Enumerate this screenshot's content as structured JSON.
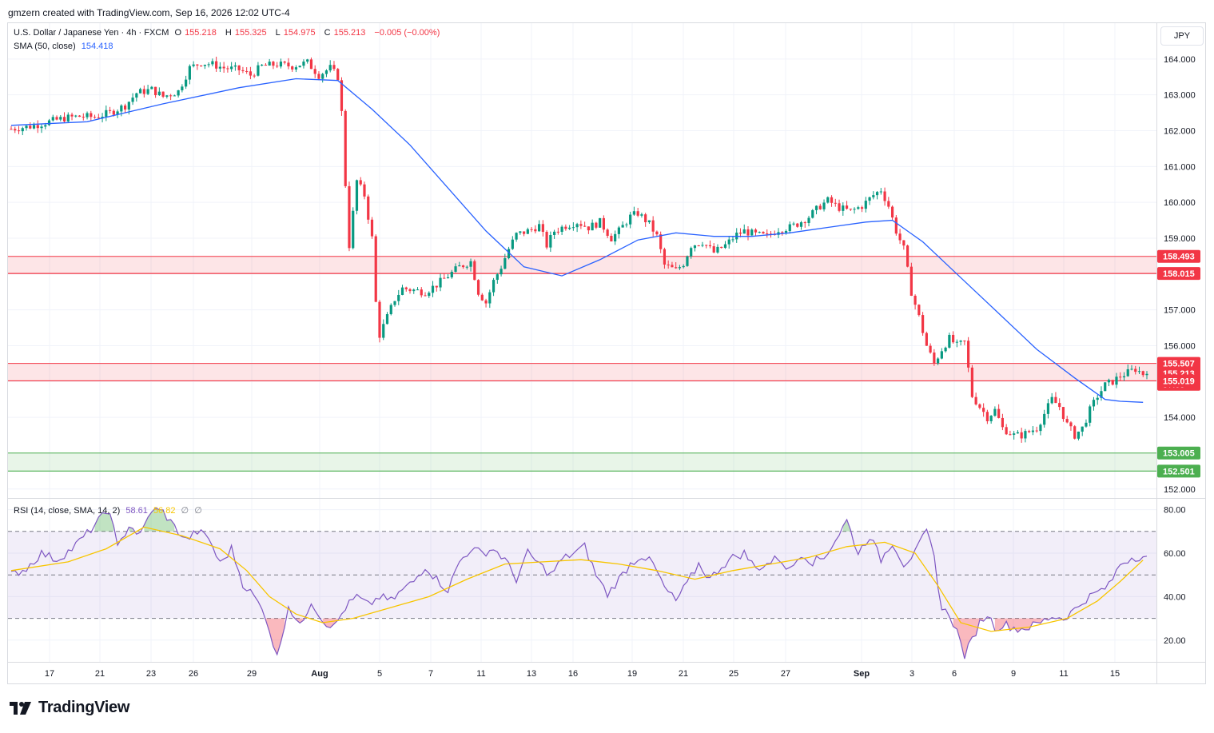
{
  "header": {
    "text": "gmzern created with TradingView.com, Sep 16, 2026 12:02 UTC-4"
  },
  "legend": {
    "symbol": "U.S. Dollar / Japanese Yen · 4h · FXCM",
    "o_label": "O",
    "o": "155.218",
    "h_label": "H",
    "h": "155.325",
    "l_label": "L",
    "l": "154.975",
    "c_label": "C",
    "c": "155.213",
    "change": "−0.005 (−0.00%)",
    "sma_label": "SMA (50, close)",
    "sma_value": "154.418"
  },
  "rsi_legend": {
    "label": "RSI (14, close, SMA, 14, 2)",
    "rsi": "58.61",
    "ma": "56.82",
    "extra1": "∅",
    "extra2": "∅"
  },
  "currency": "JPY",
  "footer": {
    "brand": "TradingView"
  },
  "colors": {
    "up": "#089981",
    "down": "#f23645",
    "sma": "#2962ff",
    "rsi": "#7e57c2",
    "rsi_ma": "#f7c500",
    "resistance_zone": "#f23645",
    "support_zone": "#4caf50"
  },
  "chart_data": {
    "type": "candlestick",
    "price_axis": {
      "range": [
        151.75,
        165.0
      ],
      "ticks": [
        "164.000",
        "163.000",
        "162.000",
        "161.000",
        "160.000",
        "159.000",
        "158.000",
        "157.000",
        "156.000",
        "155.000",
        "154.000",
        "153.000",
        "152.000"
      ]
    },
    "rsi_axis": {
      "range": [
        10,
        85
      ],
      "ticks": [
        "80.00",
        "60.00",
        "40.00",
        "20.00"
      ],
      "upper_band": 70,
      "middle": 50,
      "lower_band": 30
    },
    "x_ticks": [
      "17",
      "21",
      "23",
      "26",
      "29",
      "Aug",
      "5",
      "7",
      "11",
      "13",
      "16",
      "19",
      "21",
      "25",
      "27",
      "Sep",
      "3",
      "6",
      "9",
      "11",
      "15"
    ],
    "zones": [
      {
        "type": "resistance",
        "top": 158.493,
        "bottom": 158.015
      },
      {
        "type": "resistance",
        "top": 155.507,
        "bottom": 155.019
      },
      {
        "type": "support",
        "top": 153.005,
        "bottom": 152.501
      }
    ],
    "price_labels": [
      {
        "value": "158.493",
        "price": 158.493,
        "color": "#f23645"
      },
      {
        "value": "158.015",
        "price": 158.015,
        "color": "#f23645"
      },
      {
        "value": "155.507",
        "price": 155.507,
        "color": "#f23645"
      },
      {
        "value": "155.213",
        "price": 155.213,
        "color": "#f23645",
        "countdown": "57:05"
      },
      {
        "value": "155.019",
        "price": 155.019,
        "color": "#f23645"
      },
      {
        "value": "153.005",
        "price": 153.005,
        "color": "#4caf50"
      },
      {
        "value": "152.501",
        "price": 152.501,
        "color": "#4caf50"
      }
    ],
    "close_series": [
      [
        0,
        162.05
      ],
      [
        5,
        162.12
      ],
      [
        10,
        162.25
      ],
      [
        14,
        162.35
      ],
      [
        18,
        162.4
      ],
      [
        22,
        162.38
      ],
      [
        26,
        162.5
      ],
      [
        30,
        162.7
      ],
      [
        33,
        163.05
      ],
      [
        37,
        163.15
      ],
      [
        40,
        162.95
      ],
      [
        44,
        163.1
      ],
      [
        47,
        163.75
      ],
      [
        50,
        163.9
      ],
      [
        53,
        163.85
      ],
      [
        56,
        163.75
      ],
      [
        60,
        163.7
      ],
      [
        63,
        163.55
      ],
      [
        66,
        163.8
      ],
      [
        70,
        163.85
      ],
      [
        74,
        163.8
      ],
      [
        78,
        163.9
      ],
      [
        81,
        163.55
      ],
      [
        84,
        163.75
      ],
      [
        86,
        163.5
      ],
      [
        87,
        162.5
      ],
      [
        88,
        160.5
      ],
      [
        89,
        158.8
      ],
      [
        91,
        160.6
      ],
      [
        93,
        160.2
      ],
      [
        95,
        159.0
      ],
      [
        96,
        157.2
      ],
      [
        97,
        156.3
      ],
      [
        99,
        156.8
      ],
      [
        101,
        157.3
      ],
      [
        103,
        157.6
      ],
      [
        106,
        157.55
      ],
      [
        109,
        157.5
      ],
      [
        112,
        157.7
      ],
      [
        115,
        157.95
      ],
      [
        118,
        158.2
      ],
      [
        121,
        158.35
      ],
      [
        123,
        157.5
      ],
      [
        125,
        157.2
      ],
      [
        127,
        157.8
      ],
      [
        129,
        158.2
      ],
      [
        131,
        158.7
      ],
      [
        133,
        159.1
      ],
      [
        136,
        159.2
      ],
      [
        139,
        159.35
      ],
      [
        141,
        158.8
      ],
      [
        143,
        159.2
      ],
      [
        146,
        159.35
      ],
      [
        149,
        159.45
      ],
      [
        152,
        159.3
      ],
      [
        155,
        159.45
      ],
      [
        158,
        159.0
      ],
      [
        160,
        159.2
      ],
      [
        163,
        159.6
      ],
      [
        165,
        159.7
      ],
      [
        168,
        159.4
      ],
      [
        170,
        159.05
      ],
      [
        172,
        158.25
      ],
      [
        175,
        158.1
      ],
      [
        177,
        158.3
      ],
      [
        179,
        158.8
      ],
      [
        182,
        158.9
      ],
      [
        185,
        158.6
      ],
      [
        188,
        158.8
      ],
      [
        191,
        159.1
      ],
      [
        193,
        159.2
      ],
      [
        196,
        159.1
      ],
      [
        199,
        159.05
      ],
      [
        202,
        159.25
      ],
      [
        205,
        159.3
      ],
      [
        207,
        159.4
      ],
      [
        210,
        159.6
      ],
      [
        213,
        159.9
      ],
      [
        215,
        160.05
      ],
      [
        218,
        159.85
      ],
      [
        221,
        159.75
      ],
      [
        224,
        159.9
      ],
      [
        227,
        160.2
      ],
      [
        229,
        160.35
      ],
      [
        231,
        159.9
      ],
      [
        233,
        159.2
      ],
      [
        235,
        158.7
      ],
      [
        237,
        157.5
      ],
      [
        239,
        156.8
      ],
      [
        241,
        156.0
      ],
      [
        243,
        155.5
      ],
      [
        245,
        155.9
      ],
      [
        247,
        156.2
      ],
      [
        249,
        156.0
      ],
      [
        251,
        156.1
      ],
      [
        253,
        154.6
      ],
      [
        255,
        154.3
      ],
      [
        257,
        154.0
      ],
      [
        259,
        154.2
      ],
      [
        261,
        153.7
      ],
      [
        264,
        153.5
      ],
      [
        266,
        153.5
      ],
      [
        268,
        153.6
      ],
      [
        270,
        153.7
      ],
      [
        272,
        154.1
      ],
      [
        274,
        154.5
      ],
      [
        276,
        154.3
      ],
      [
        278,
        153.8
      ],
      [
        280,
        153.5
      ],
      [
        282,
        153.7
      ],
      [
        284,
        154.2
      ],
      [
        286,
        154.6
      ],
      [
        288,
        154.9
      ],
      [
        290,
        155.0
      ],
      [
        292,
        155.15
      ],
      [
        294,
        155.25
      ],
      [
        296,
        155.35
      ],
      [
        298,
        155.21
      ]
    ],
    "sma_series": [
      [
        0,
        162.15
      ],
      [
        20,
        162.25
      ],
      [
        40,
        162.75
      ],
      [
        60,
        163.2
      ],
      [
        75,
        163.45
      ],
      [
        86,
        163.4
      ],
      [
        95,
        162.6
      ],
      [
        105,
        161.6
      ],
      [
        115,
        160.4
      ],
      [
        125,
        159.2
      ],
      [
        135,
        158.2
      ],
      [
        145,
        157.95
      ],
      [
        155,
        158.4
      ],
      [
        165,
        158.95
      ],
      [
        175,
        159.15
      ],
      [
        185,
        159.05
      ],
      [
        195,
        159.05
      ],
      [
        205,
        159.15
      ],
      [
        215,
        159.3
      ],
      [
        225,
        159.45
      ],
      [
        232,
        159.5
      ],
      [
        240,
        158.9
      ],
      [
        250,
        157.9
      ],
      [
        260,
        156.9
      ],
      [
        270,
        155.9
      ],
      [
        280,
        155.1
      ],
      [
        288,
        154.5
      ],
      [
        292,
        154.45
      ],
      [
        298,
        154.42
      ]
    ],
    "rsi_series": [
      [
        0,
        50
      ],
      [
        4,
        53
      ],
      [
        8,
        60
      ],
      [
        12,
        57
      ],
      [
        16,
        62
      ],
      [
        20,
        69
      ],
      [
        23,
        75
      ],
      [
        26,
        80
      ],
      [
        28,
        62
      ],
      [
        31,
        73
      ],
      [
        34,
        68
      ],
      [
        37,
        80
      ],
      [
        40,
        79
      ],
      [
        43,
        72
      ],
      [
        46,
        66
      ],
      [
        49,
        70
      ],
      [
        52,
        67
      ],
      [
        55,
        55
      ],
      [
        58,
        62
      ],
      [
        61,
        46
      ],
      [
        64,
        40
      ],
      [
        67,
        31
      ],
      [
        70,
        12
      ],
      [
        73,
        36
      ],
      [
        76,
        26
      ],
      [
        79,
        38
      ],
      [
        82,
        29
      ],
      [
        85,
        26
      ],
      [
        88,
        35
      ],
      [
        91,
        40
      ],
      [
        94,
        36
      ],
      [
        97,
        40
      ],
      [
        100,
        38
      ],
      [
        103,
        43
      ],
      [
        106,
        47
      ],
      [
        109,
        54
      ],
      [
        112,
        48
      ],
      [
        115,
        43
      ],
      [
        118,
        56
      ],
      [
        121,
        62
      ],
      [
        124,
        60
      ],
      [
        127,
        62
      ],
      [
        130,
        57
      ],
      [
        133,
        48
      ],
      [
        136,
        60
      ],
      [
        139,
        55
      ],
      [
        142,
        50
      ],
      [
        145,
        57
      ],
      [
        148,
        60
      ],
      [
        151,
        63
      ],
      [
        154,
        50
      ],
      [
        157,
        41
      ],
      [
        160,
        48
      ],
      [
        163,
        55
      ],
      [
        166,
        59
      ],
      [
        169,
        55
      ],
      [
        172,
        44
      ],
      [
        175,
        38
      ],
      [
        178,
        46
      ],
      [
        181,
        55
      ],
      [
        184,
        48
      ],
      [
        187,
        54
      ],
      [
        190,
        58
      ],
      [
        193,
        60
      ],
      [
        196,
        53
      ],
      [
        199,
        55
      ],
      [
        202,
        58
      ],
      [
        205,
        52
      ],
      [
        208,
        60
      ],
      [
        211,
        56
      ],
      [
        214,
        58
      ],
      [
        217,
        66
      ],
      [
        220,
        75
      ],
      [
        223,
        60
      ],
      [
        226,
        68
      ],
      [
        229,
        57
      ],
      [
        232,
        65
      ],
      [
        235,
        55
      ],
      [
        238,
        60
      ],
      [
        241,
        70
      ],
      [
        243,
        58
      ],
      [
        245,
        34
      ],
      [
        247,
        32
      ],
      [
        249,
        24
      ],
      [
        251,
        13
      ],
      [
        253,
        20
      ],
      [
        255,
        28
      ],
      [
        257,
        32
      ],
      [
        259,
        26
      ],
      [
        262,
        27
      ],
      [
        265,
        25
      ],
      [
        268,
        26
      ],
      [
        271,
        28
      ],
      [
        274,
        31
      ],
      [
        277,
        30
      ],
      [
        280,
        34
      ],
      [
        283,
        39
      ],
      [
        286,
        42
      ],
      [
        289,
        45
      ],
      [
        292,
        55
      ],
      [
        295,
        58
      ],
      [
        298,
        58.6
      ]
    ],
    "rsi_ma_series": [
      [
        0,
        52
      ],
      [
        15,
        56
      ],
      [
        25,
        62
      ],
      [
        35,
        72
      ],
      [
        45,
        68
      ],
      [
        55,
        62
      ],
      [
        62,
        52
      ],
      [
        68,
        40
      ],
      [
        75,
        32
      ],
      [
        82,
        28
      ],
      [
        90,
        30
      ],
      [
        100,
        35
      ],
      [
        110,
        40
      ],
      [
        120,
        48
      ],
      [
        130,
        55
      ],
      [
        140,
        56
      ],
      [
        150,
        57
      ],
      [
        160,
        55
      ],
      [
        170,
        52
      ],
      [
        180,
        48
      ],
      [
        190,
        52
      ],
      [
        200,
        55
      ],
      [
        210,
        58
      ],
      [
        220,
        63
      ],
      [
        230,
        65
      ],
      [
        238,
        60
      ],
      [
        244,
        45
      ],
      [
        250,
        28
      ],
      [
        258,
        24
      ],
      [
        268,
        26
      ],
      [
        278,
        30
      ],
      [
        286,
        38
      ],
      [
        292,
        47
      ],
      [
        298,
        56.8
      ]
    ]
  }
}
